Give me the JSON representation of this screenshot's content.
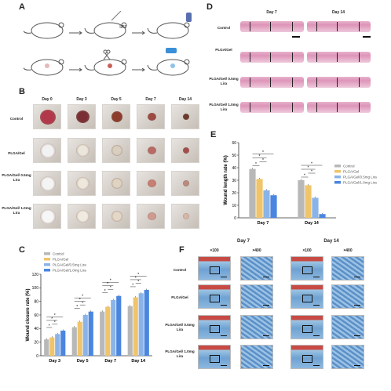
{
  "panels": {
    "a": "A",
    "b": "B",
    "c": "C",
    "d": "D",
    "e": "E",
    "f": "F"
  },
  "panel_a": {
    "stz_label": "STZ"
  },
  "panel_b": {
    "days": [
      "Day 0",
      "Day 3",
      "Day 5",
      "Day 7",
      "Day 14"
    ],
    "groups": [
      "Control",
      "PLGA/Gel",
      "PLGA/Gel/ 0.5mg Lira",
      "PLGA/Gel/ 1.0mg Lira"
    ]
  },
  "panel_d": {
    "days": [
      "Day 7",
      "Day 14"
    ],
    "groups": [
      "Control",
      "PLGA/Gel",
      "PLGA/Gel/ 0.5mg Lira",
      "PLGA/Gel/ 1.0mg Lira"
    ]
  },
  "panel_f": {
    "days": [
      "Day 7",
      "Day 14"
    ],
    "mags": [
      "×100",
      "×400",
      "×100",
      "×400"
    ],
    "groups": [
      "Control",
      "PLGA/Gel",
      "PLGA/Gel/ 0.5mg Lira",
      "PLGA/Gel/ 1.0mg Lira"
    ]
  },
  "colors": {
    "control": "#b8b8b8",
    "plga": "#f0c46a",
    "lira05": "#8ab4e8",
    "lira10": "#4a86e0"
  },
  "chart_data": [
    {
      "id": "C",
      "type": "bar",
      "ylabel": "Wound closure rate (%)",
      "ylim": [
        0,
        120
      ],
      "yticks": [
        0,
        20,
        40,
        60,
        80,
        100,
        120
      ],
      "categories": [
        "Day 3",
        "Day 5",
        "Day 7",
        "Day 14"
      ],
      "legend_position": "top-left",
      "significance_marker": "*",
      "series": [
        {
          "name": "Control",
          "values": [
            24,
            42,
            65,
            73
          ]
        },
        {
          "name": "PLGA/Gel",
          "values": [
            27,
            50,
            72,
            86
          ]
        },
        {
          "name": "PLGA/Gel/0.5mg Lira",
          "values": [
            32,
            60,
            82,
            92
          ]
        },
        {
          "name": "PLGA/Gel/1.0mg Lira",
          "values": [
            37,
            65,
            88,
            97
          ]
        }
      ]
    },
    {
      "id": "E",
      "type": "bar",
      "ylabel": "Wound length rate (%)",
      "ylim": [
        0,
        60
      ],
      "yticks": [
        0,
        10,
        20,
        30,
        40,
        50,
        60
      ],
      "categories": [
        "Day 7",
        "Day 14"
      ],
      "legend_position": "right",
      "significance_marker": "*",
      "series": [
        {
          "name": "Control",
          "values": [
            39,
            30
          ]
        },
        {
          "name": "PLGA/Gel",
          "values": [
            31,
            26
          ]
        },
        {
          "name": "PLGA/Gel/0.5mg Lira",
          "values": [
            22,
            16
          ]
        },
        {
          "name": "PLGA/Gel/1.0mg Lira",
          "values": [
            18,
            3
          ]
        }
      ]
    }
  ]
}
